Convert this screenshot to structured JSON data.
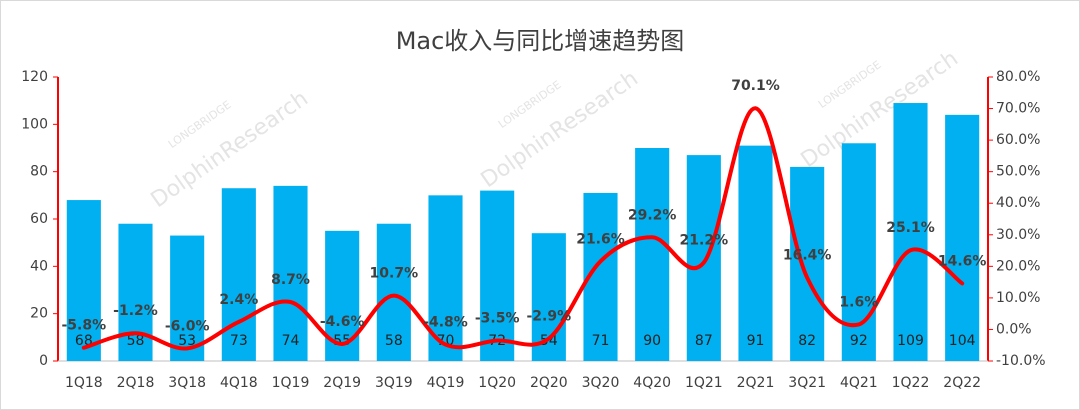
{
  "chart_data": {
    "type": "bar-line",
    "title": "Mac收入与同比增速趋势图",
    "watermark": [
      "LONGBRIDGE",
      "DolphinResearch"
    ],
    "categories": [
      "1Q18",
      "2Q18",
      "3Q18",
      "4Q18",
      "1Q19",
      "2Q19",
      "3Q19",
      "4Q19",
      "1Q20",
      "2Q20",
      "3Q20",
      "4Q20",
      "1Q21",
      "2Q21",
      "3Q21",
      "4Q21",
      "1Q22",
      "2Q22"
    ],
    "series": [
      {
        "type": "bar",
        "color": "#00b0f0",
        "values": [
          68,
          58,
          53,
          73,
          74,
          55,
          58,
          70,
          72,
          54,
          71,
          90,
          87,
          91,
          82,
          92,
          109,
          104
        ]
      },
      {
        "type": "line",
        "axis": "y2",
        "color": "#ff0000",
        "values": [
          -5.8,
          -1.2,
          -6.0,
          2.4,
          8.7,
          -4.6,
          10.7,
          -4.8,
          -3.5,
          -2.9,
          21.6,
          29.2,
          21.2,
          70.1,
          16.4,
          1.6,
          25.1,
          14.6
        ],
        "value_labels": [
          "-5.8%",
          "-1.2%",
          "-6.0%",
          "2.4%",
          "8.7%",
          "-4.6%",
          "10.7%",
          "-4.8%",
          "-3.5%",
          "-2.9%",
          "21.6%",
          "29.2%",
          "21.2%",
          "70.1%",
          "16.4%",
          "1.6%",
          "25.1%",
          "14.6%"
        ]
      }
    ],
    "ylim": [
      0,
      120
    ],
    "yticks": [
      0,
      20,
      40,
      60,
      80,
      100,
      120
    ],
    "y2lim": [
      -10,
      80
    ],
    "y2ticks": [
      {
        "value": -10,
        "label": "-10.0%"
      },
      {
        "value": 0,
        "label": "0.0%"
      },
      {
        "value": 10,
        "label": "10.0%"
      },
      {
        "value": 20,
        "label": "20.0%"
      },
      {
        "value": 30,
        "label": "30.0%"
      },
      {
        "value": 40,
        "label": "40.0%"
      },
      {
        "value": 50,
        "label": "50.0%"
      },
      {
        "value": 60,
        "label": "60.0%"
      },
      {
        "value": 70,
        "label": "70.0%"
      },
      {
        "value": 80,
        "label": "80.0%"
      }
    ],
    "axis_color": "#ff0000"
  }
}
